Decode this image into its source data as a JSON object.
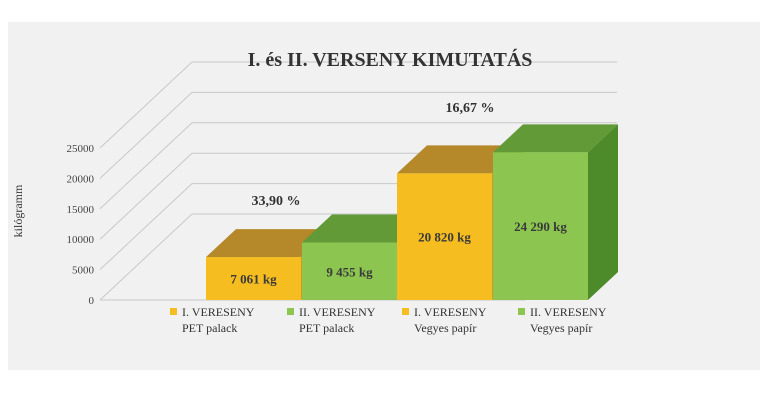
{
  "chart_data": {
    "type": "bar",
    "title": "I. és II. VERSENY KIMUTATÁS",
    "xlabel": "",
    "ylabel": "kilógramm",
    "ylim": [
      0,
      25000
    ],
    "yticks": [
      0,
      5000,
      10000,
      15000,
      20000,
      25000
    ],
    "grid": true,
    "categories": [
      [
        "I. VERESENY",
        "PET palack"
      ],
      [
        "II. VERESENY",
        "PET palack"
      ],
      [
        "I. VERESENY",
        "Vegyes papír"
      ],
      [
        "II. VERESENY",
        "Vegyes papír"
      ]
    ],
    "values": [
      7061,
      9455,
      20820,
      24290
    ],
    "value_labels": [
      "7 061 kg",
      "9 455 kg",
      "20 820 kg",
      "24 290 kg"
    ],
    "percent_annotations": [
      {
        "text": "33,90 %",
        "pair": [
          0,
          1
        ]
      },
      {
        "text": "16,67 %",
        "pair": [
          2,
          3
        ]
      }
    ],
    "colors": {
      "yellow_front": "#f5bd1f",
      "yellow_top": "#b5882a",
      "yellow_side": "#c99a1e",
      "green_front": "#8cc650",
      "green_top": "#619a37",
      "green_side": "#4d8a2a",
      "grid": "#c8c8c8",
      "wall": "#f1f1f1"
    },
    "bar_colors": [
      "yellow",
      "green",
      "yellow",
      "green"
    ]
  }
}
